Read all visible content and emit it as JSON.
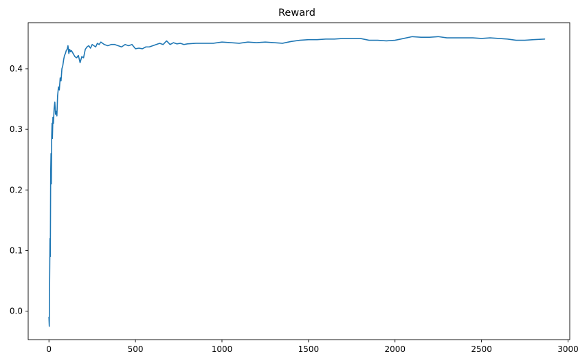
{
  "chart_data": {
    "type": "line",
    "title": "Reward",
    "xlabel": "",
    "ylabel": "",
    "xlim": [
      -120,
      3010
    ],
    "ylim": [
      -0.047,
      0.476
    ],
    "xticks": [
      0,
      500,
      1000,
      1500,
      2000,
      2500,
      3000
    ],
    "xtick_labels": [
      "0",
      "500",
      "1000",
      "1500",
      "2000",
      "2500",
      "3000"
    ],
    "yticks": [
      0.0,
      0.1,
      0.2,
      0.3,
      0.4
    ],
    "ytick_labels": [
      "0.0",
      "0.1",
      "0.2",
      "0.3",
      "0.4"
    ],
    "grid": false,
    "legend": "none",
    "series": [
      {
        "color": "#1f77b4",
        "x": [
          0,
          2,
          4,
          6,
          8,
          10,
          12,
          14,
          16,
          18,
          20,
          23,
          26,
          30,
          34,
          38,
          42,
          46,
          50,
          55,
          60,
          65,
          70,
          75,
          80,
          85,
          90,
          95,
          100,
          105,
          110,
          115,
          120,
          125,
          130,
          140,
          150,
          160,
          170,
          180,
          190,
          200,
          210,
          220,
          230,
          240,
          250,
          260,
          270,
          280,
          290,
          300,
          320,
          340,
          360,
          380,
          400,
          420,
          440,
          460,
          480,
          500,
          520,
          540,
          560,
          580,
          600,
          620,
          640,
          660,
          680,
          700,
          720,
          740,
          760,
          780,
          800,
          850,
          900,
          950,
          1000,
          1050,
          1100,
          1150,
          1200,
          1250,
          1300,
          1350,
          1400,
          1450,
          1500,
          1550,
          1600,
          1650,
          1700,
          1750,
          1800,
          1850,
          1900,
          1950,
          2000,
          2050,
          2100,
          2150,
          2200,
          2250,
          2300,
          2350,
          2400,
          2450,
          2500,
          2550,
          2600,
          2650,
          2700,
          2750,
          2800,
          2865
        ],
        "y": [
          -0.01,
          -0.025,
          0.05,
          0.12,
          0.09,
          0.23,
          0.26,
          0.21,
          0.29,
          0.31,
          0.285,
          0.32,
          0.31,
          0.335,
          0.345,
          0.325,
          0.33,
          0.322,
          0.355,
          0.37,
          0.365,
          0.385,
          0.38,
          0.4,
          0.405,
          0.415,
          0.422,
          0.425,
          0.43,
          0.432,
          0.438,
          0.425,
          0.432,
          0.428,
          0.43,
          0.425,
          0.42,
          0.418,
          0.422,
          0.41,
          0.42,
          0.418,
          0.432,
          0.436,
          0.438,
          0.434,
          0.44,
          0.438,
          0.436,
          0.442,
          0.44,
          0.444,
          0.44,
          0.438,
          0.44,
          0.44,
          0.438,
          0.436,
          0.44,
          0.438,
          0.44,
          0.433,
          0.434,
          0.433,
          0.436,
          0.436,
          0.438,
          0.44,
          0.442,
          0.44,
          0.446,
          0.44,
          0.443,
          0.441,
          0.442,
          0.44,
          0.441,
          0.442,
          0.442,
          0.442,
          0.444,
          0.443,
          0.442,
          0.444,
          0.443,
          0.444,
          0.443,
          0.442,
          0.445,
          0.447,
          0.448,
          0.448,
          0.449,
          0.449,
          0.45,
          0.45,
          0.45,
          0.447,
          0.447,
          0.446,
          0.447,
          0.45,
          0.453,
          0.452,
          0.452,
          0.453,
          0.451,
          0.451,
          0.451,
          0.451,
          0.45,
          0.451,
          0.45,
          0.449,
          0.447,
          0.447,
          0.448,
          0.449
        ]
      }
    ]
  }
}
